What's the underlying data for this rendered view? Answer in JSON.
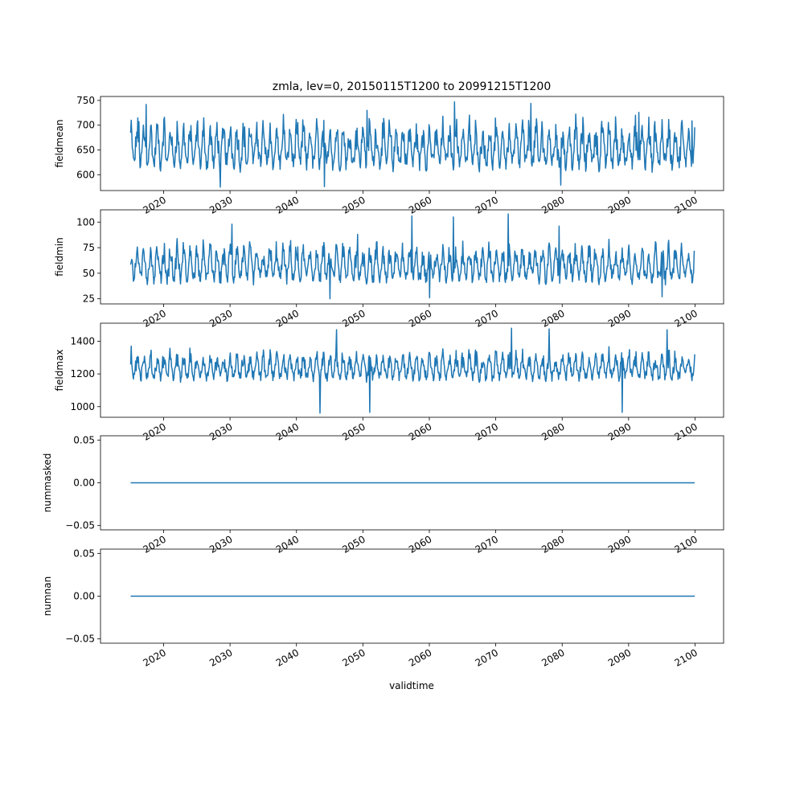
{
  "figure": {
    "title": "zmla, lev=0, 20150115T1200 to 20991215T1200",
    "xlabel": "validtime",
    "line_color": "#1f77b4"
  },
  "chart_data": [
    {
      "type": "line",
      "ylabel": "fieldmean",
      "x_range": [
        "2015-01-15",
        "2099-12-15"
      ],
      "xlim": [
        2010.5,
        2104.3
      ],
      "ylim": [
        568,
        758
      ],
      "xticks": [
        "2020",
        "2030",
        "2040",
        "2050",
        "2060",
        "2070",
        "2080",
        "2090",
        "2100"
      ],
      "yticks": [
        600,
        650,
        700,
        750
      ],
      "series": [
        {
          "values_approx": {
            "baseline": 622,
            "typical_peak": 700,
            "min": 575,
            "max": 747
          },
          "peaks": [
            {
              "x": 2016.3,
              "y": 707
            },
            {
              "x": 2017.4,
              "y": 742
            },
            {
              "x": 2025.0,
              "y": 702
            },
            {
              "x": 2034.0,
              "y": 706
            },
            {
              "x": 2038.0,
              "y": 722
            },
            {
              "x": 2050.6,
              "y": 730
            },
            {
              "x": 2063.8,
              "y": 747
            },
            {
              "x": 2075.3,
              "y": 744
            },
            {
              "x": 2091.5,
              "y": 726
            },
            {
              "x": 2099.5,
              "y": 709
            }
          ],
          "troughs": [
            {
              "x": 2028.5,
              "y": 575
            },
            {
              "x": 2044.2,
              "y": 576
            },
            {
              "x": 2079.8,
              "y": 579
            }
          ]
        }
      ]
    },
    {
      "type": "line",
      "ylabel": "fieldmin",
      "x_range": [
        "2015-01-15",
        "2099-12-15"
      ],
      "xlim": [
        2010.5,
        2104.3
      ],
      "ylim": [
        20,
        112
      ],
      "xticks": [
        "2020",
        "2030",
        "2040",
        "2050",
        "2060",
        "2070",
        "2080",
        "2090",
        "2100"
      ],
      "yticks": [
        25,
        50,
        75,
        100
      ],
      "series": [
        {
          "values_approx": {
            "baseline": 45,
            "typical_peak": 75,
            "min": 24,
            "max": 108
          },
          "peaks": [
            {
              "x": 2030.3,
              "y": 98
            },
            {
              "x": 2049.2,
              "y": 88
            },
            {
              "x": 2057.4,
              "y": 106
            },
            {
              "x": 2063.6,
              "y": 105
            },
            {
              "x": 2071.9,
              "y": 108
            },
            {
              "x": 2079.5,
              "y": 96
            }
          ],
          "troughs": [
            {
              "x": 2045.0,
              "y": 25
            },
            {
              "x": 2060.0,
              "y": 26
            },
            {
              "x": 2095.0,
              "y": 27
            }
          ]
        }
      ]
    },
    {
      "type": "line",
      "ylabel": "fieldmax",
      "x_range": [
        "2015-01-15",
        "2099-12-15"
      ],
      "xlim": [
        2010.5,
        2104.3
      ],
      "ylim": [
        935,
        1510
      ],
      "xticks": [
        "2020",
        "2030",
        "2040",
        "2050",
        "2060",
        "2070",
        "2080",
        "2090",
        "2100"
      ],
      "yticks": [
        1000,
        1200,
        1400
      ],
      "series": [
        {
          "values_approx": {
            "baseline": 1180,
            "typical_peak": 1320,
            "min": 960,
            "max": 1480
          },
          "peaks": [
            {
              "x": 2015.1,
              "y": 1370
            },
            {
              "x": 2046.0,
              "y": 1470
            },
            {
              "x": 2072.4,
              "y": 1480
            },
            {
              "x": 2078.0,
              "y": 1475
            },
            {
              "x": 2095.8,
              "y": 1470
            }
          ],
          "troughs": [
            {
              "x": 2043.5,
              "y": 960
            },
            {
              "x": 2051.0,
              "y": 965
            },
            {
              "x": 2089.0,
              "y": 965
            }
          ]
        }
      ]
    },
    {
      "type": "line",
      "ylabel": "nummasked",
      "x_range": [
        "2015-01-15",
        "2099-12-15"
      ],
      "xlim": [
        2010.5,
        2104.3
      ],
      "ylim": [
        -0.055,
        0.055
      ],
      "xticks": [
        "2020",
        "2030",
        "2040",
        "2050",
        "2060",
        "2070",
        "2080",
        "2090",
        "2100"
      ],
      "yticks": [
        "0.05",
        "0.00",
        "−0.05"
      ],
      "series": [
        {
          "constant": 0.0
        }
      ]
    },
    {
      "type": "line",
      "ylabel": "numnan",
      "x_range": [
        "2015-01-15",
        "2099-12-15"
      ],
      "xlim": [
        2010.5,
        2104.3
      ],
      "ylim": [
        -0.055,
        0.055
      ],
      "xticks": [
        "2020",
        "2030",
        "2040",
        "2050",
        "2060",
        "2070",
        "2080",
        "2090",
        "2100"
      ],
      "yticks": [
        "0.05",
        "0.00",
        "−0.05"
      ],
      "series": [
        {
          "constant": 0.0
        }
      ]
    }
  ]
}
